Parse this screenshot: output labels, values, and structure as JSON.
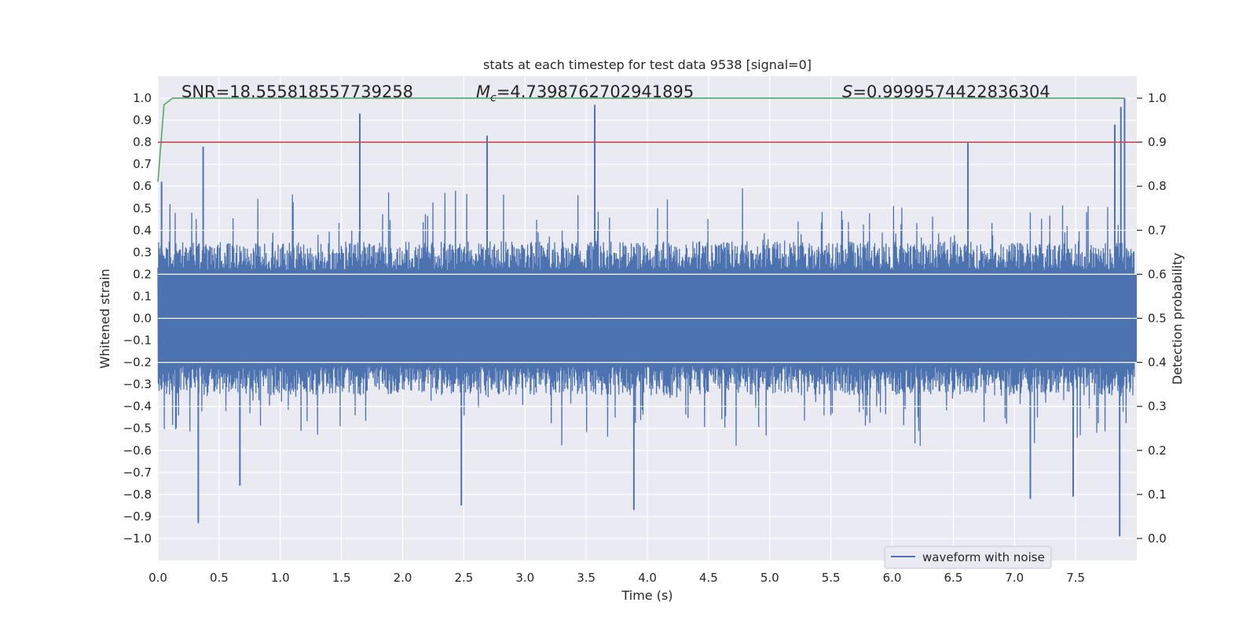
{
  "chart_data": {
    "type": "line",
    "title": "stats at each timestep for test data 9538 [signal=0]",
    "xlabel": "Time (s)",
    "ylabel": "Whitened strain",
    "y2label": "Detection probability",
    "xlim": [
      0.0,
      8.0
    ],
    "ylim": [
      -1.1,
      1.1
    ],
    "y2lim": [
      -0.05,
      1.05
    ],
    "x_ticks": [
      0.0,
      0.5,
      1.0,
      1.5,
      2.0,
      2.5,
      3.0,
      3.5,
      4.0,
      4.5,
      5.0,
      5.5,
      6.0,
      6.5,
      7.0,
      7.5
    ],
    "x_tick_labels": [
      "0.0",
      "0.5",
      "1.0",
      "1.5",
      "2.0",
      "2.5",
      "3.0",
      "3.5",
      "4.0",
      "4.5",
      "5.0",
      "5.5",
      "6.0",
      "6.5",
      "7.0",
      "7.5"
    ],
    "y_ticks": [
      -1.0,
      -0.9,
      -0.8,
      -0.7,
      -0.6,
      -0.5,
      -0.4,
      -0.3,
      -0.2,
      -0.1,
      0.0,
      0.1,
      0.2,
      0.3,
      0.4,
      0.5,
      0.6,
      0.7,
      0.8,
      0.9,
      1.0
    ],
    "y_tick_labels": [
      "−1.0",
      "−0.9",
      "−0.8",
      "−0.7",
      "−0.6",
      "−0.5",
      "−0.4",
      "−0.3",
      "−0.2",
      "−0.1",
      "0.0",
      "0.1",
      "0.2",
      "0.3",
      "0.4",
      "0.5",
      "0.6",
      "0.7",
      "0.8",
      "0.9",
      "1.0"
    ],
    "y2_ticks": [
      0.0,
      0.1,
      0.2,
      0.3,
      0.4,
      0.5,
      0.6,
      0.7,
      0.8,
      0.9,
      1.0
    ],
    "y2_tick_labels": [
      "0.0",
      "0.1",
      "0.2",
      "0.3",
      "0.4",
      "0.5",
      "0.6",
      "0.7",
      "0.8",
      "0.9",
      "1.0"
    ],
    "grid": true,
    "legend_placement": "lower-right",
    "annotations": {
      "snr": "SNR=18.555818557739258",
      "mc": "=4.7398762702941895",
      "mc_symbol": "M",
      "mc_sub": "c",
      "s": "=0.9999574422836304",
      "s_symbol": "S"
    },
    "series": [
      {
        "name": "waveform with noise",
        "axis": "left",
        "color": "#4c72b0",
        "style": "dense noise trace, envelope approx ±0.35 with spikes",
        "notable_peaks": [
          {
            "x": 0.03,
            "y": 0.62
          },
          {
            "x": 0.37,
            "y": 0.78
          },
          {
            "x": 1.65,
            "y": 0.93
          },
          {
            "x": 2.69,
            "y": 0.83
          },
          {
            "x": 3.57,
            "y": 0.97
          },
          {
            "x": 6.62,
            "y": 0.8
          },
          {
            "x": 7.82,
            "y": 0.88
          },
          {
            "x": 7.87,
            "y": 0.96
          },
          {
            "x": 7.9,
            "y": 1.0
          }
        ],
        "notable_troughs": [
          {
            "x": 0.33,
            "y": -0.93
          },
          {
            "x": 0.67,
            "y": -0.76
          },
          {
            "x": 2.48,
            "y": -0.85
          },
          {
            "x": 3.89,
            "y": -0.87
          },
          {
            "x": 7.13,
            "y": -0.82
          },
          {
            "x": 7.48,
            "y": -0.81
          },
          {
            "x": 7.86,
            "y": -0.99
          }
        ]
      },
      {
        "name": "",
        "axis": "right",
        "color": "#55a868",
        "x": [
          0.0,
          0.05,
          0.12,
          7.9
        ],
        "y": [
          0.81,
          0.985,
          1.0,
          1.0
        ]
      },
      {
        "name": "",
        "axis": "right",
        "color": "#c44e52",
        "x": [
          0.0,
          8.0
        ],
        "y": [
          0.9,
          0.9
        ]
      }
    ]
  }
}
